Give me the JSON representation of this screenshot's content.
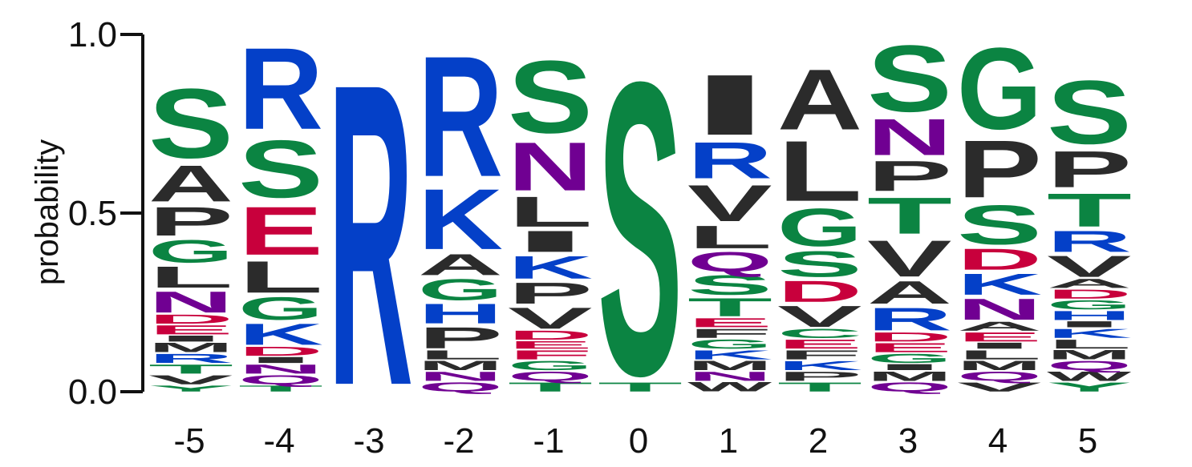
{
  "chart_data": {
    "type": "sequence-logo",
    "title": "",
    "xlabel": "",
    "ylabel": "probability",
    "ylim": [
      0,
      1
    ],
    "yticks": [
      "0.0",
      "0.5",
      "1.0"
    ],
    "positions": [
      "-5",
      "-4",
      "-3",
      "-2",
      "-1",
      "0",
      "1",
      "2",
      "3",
      "4",
      "5"
    ],
    "colors": {
      "green": "#0b8442",
      "blue": "#0440c8",
      "black": "#2b2b2b",
      "red": "#c8003c",
      "purple": "#700092"
    },
    "stacks": [
      {
        "position": "-5",
        "letters": [
          {
            "l": "Y",
            "h": 0.02,
            "c": "green"
          },
          {
            "l": "V",
            "h": 0.03,
            "c": "black"
          },
          {
            "l": "T",
            "h": 0.03,
            "c": "green"
          },
          {
            "l": "R",
            "h": 0.03,
            "c": "blue"
          },
          {
            "l": "M",
            "h": 0.03,
            "c": "black"
          },
          {
            "l": "I",
            "h": 0.02,
            "c": "black"
          },
          {
            "l": "E",
            "h": 0.03,
            "c": "red"
          },
          {
            "l": "D",
            "h": 0.03,
            "c": "red"
          },
          {
            "l": "N",
            "h": 0.07,
            "c": "purple"
          },
          {
            "l": "L",
            "h": 0.07,
            "c": "black"
          },
          {
            "l": "G",
            "h": 0.075,
            "c": "green"
          },
          {
            "l": "P",
            "h": 0.095,
            "c": "black"
          },
          {
            "l": "A",
            "h": 0.12,
            "c": "black"
          },
          {
            "l": "S",
            "h": 0.23,
            "c": "green"
          }
        ]
      },
      {
        "position": "-4",
        "letters": [
          {
            "l": "T",
            "h": 0.02,
            "c": "green"
          },
          {
            "l": "Q",
            "h": 0.03,
            "c": "purple"
          },
          {
            "l": "N",
            "h": 0.03,
            "c": "purple"
          },
          {
            "l": "I",
            "h": 0.02,
            "c": "black"
          },
          {
            "l": "D",
            "h": 0.03,
            "c": "red"
          },
          {
            "l": "K",
            "h": 0.07,
            "c": "blue"
          },
          {
            "l": "G",
            "h": 0.075,
            "c": "green"
          },
          {
            "l": "L",
            "h": 0.105,
            "c": "black"
          },
          {
            "l": "E",
            "h": 0.16,
            "c": "red"
          },
          {
            "l": "S",
            "h": 0.19,
            "c": "green"
          },
          {
            "l": "R",
            "h": 0.27,
            "c": "blue"
          }
        ]
      },
      {
        "position": "-3",
        "letters": [
          {
            "l": "R",
            "h": 1.0,
            "c": "blue"
          }
        ]
      },
      {
        "position": "-2",
        "letters": [
          {
            "l": "Q",
            "h": 0.03,
            "c": "purple"
          },
          {
            "l": "N",
            "h": 0.03,
            "c": "purple"
          },
          {
            "l": "M",
            "h": 0.03,
            "c": "black"
          },
          {
            "l": "L",
            "h": 0.03,
            "c": "black"
          },
          {
            "l": "P",
            "h": 0.07,
            "c": "black"
          },
          {
            "l": "H",
            "h": 0.065,
            "c": "blue"
          },
          {
            "l": "G",
            "h": 0.07,
            "c": "green"
          },
          {
            "l": "A",
            "h": 0.07,
            "c": "black"
          },
          {
            "l": "K",
            "h": 0.2,
            "c": "blue"
          },
          {
            "l": "R",
            "h": 0.4,
            "c": "blue"
          }
        ]
      },
      {
        "position": "-1",
        "letters": [
          {
            "l": "T",
            "h": 0.03,
            "c": "green"
          },
          {
            "l": "Q",
            "h": 0.03,
            "c": "purple"
          },
          {
            "l": "G",
            "h": 0.03,
            "c": "green"
          },
          {
            "l": "F",
            "h": 0.03,
            "c": "red"
          },
          {
            "l": "E",
            "h": 0.025,
            "c": "red"
          },
          {
            "l": "D",
            "h": 0.03,
            "c": "red"
          },
          {
            "l": "V",
            "h": 0.07,
            "c": "black"
          },
          {
            "l": "P",
            "h": 0.07,
            "c": "black"
          },
          {
            "l": "K",
            "h": 0.075,
            "c": "blue"
          },
          {
            "l": "I",
            "h": 0.07,
            "c": "black"
          },
          {
            "l": "L",
            "h": 0.1,
            "c": "black"
          },
          {
            "l": "N",
            "h": 0.16,
            "c": "purple"
          },
          {
            "l": "S",
            "h": 0.24,
            "c": "green"
          }
        ]
      },
      {
        "position": "0",
        "letters": [
          {
            "l": "T",
            "h": 0.03,
            "c": "green"
          },
          {
            "l": "S",
            "h": 0.97,
            "c": "green"
          }
        ]
      },
      {
        "position": "1",
        "letters": [
          {
            "l": "W",
            "h": 0.03,
            "c": "black"
          },
          {
            "l": "N",
            "h": 0.03,
            "c": "purple"
          },
          {
            "l": "M",
            "h": 0.03,
            "c": "black"
          },
          {
            "l": "K",
            "h": 0.03,
            "c": "blue"
          },
          {
            "l": "G",
            "h": 0.03,
            "c": "green"
          },
          {
            "l": "F",
            "h": 0.03,
            "c": "black"
          },
          {
            "l": "E",
            "h": 0.03,
            "c": "red"
          },
          {
            "l": "T",
            "h": 0.06,
            "c": "green"
          },
          {
            "l": "S",
            "h": 0.065,
            "c": "green"
          },
          {
            "l": "Q",
            "h": 0.065,
            "c": "purple"
          },
          {
            "l": "L",
            "h": 0.075,
            "c": "black"
          },
          {
            "l": "V",
            "h": 0.12,
            "c": "black"
          },
          {
            "l": "R",
            "h": 0.12,
            "c": "blue"
          },
          {
            "l": "I",
            "h": 0.2,
            "c": "black"
          }
        ]
      },
      {
        "position": "2",
        "letters": [
          {
            "l": "T",
            "h": 0.03,
            "c": "green"
          },
          {
            "l": "P",
            "h": 0.03,
            "c": "black"
          },
          {
            "l": "K",
            "h": 0.03,
            "c": "blue"
          },
          {
            "l": "F",
            "h": 0.03,
            "c": "black"
          },
          {
            "l": "E",
            "h": 0.03,
            "c": "red"
          },
          {
            "l": "C",
            "h": 0.03,
            "c": "green"
          },
          {
            "l": "V",
            "h": 0.07,
            "c": "black"
          },
          {
            "l": "D",
            "h": 0.07,
            "c": "red"
          },
          {
            "l": "S",
            "h": 0.085,
            "c": "green"
          },
          {
            "l": "G",
            "h": 0.125,
            "c": "green"
          },
          {
            "l": "L",
            "h": 0.2,
            "c": "black"
          },
          {
            "l": "A",
            "h": 0.2,
            "c": "black"
          }
        ]
      },
      {
        "position": "3",
        "letters": [
          {
            "l": "Q",
            "h": 0.03,
            "c": "purple"
          },
          {
            "l": "M",
            "h": 0.03,
            "c": "black"
          },
          {
            "l": "I",
            "h": 0.02,
            "c": "black"
          },
          {
            "l": "G",
            "h": 0.03,
            "c": "green"
          },
          {
            "l": "E",
            "h": 0.03,
            "c": "red"
          },
          {
            "l": "D",
            "h": 0.03,
            "c": "red"
          },
          {
            "l": "R",
            "h": 0.075,
            "c": "blue"
          },
          {
            "l": "A",
            "h": 0.075,
            "c": "black"
          },
          {
            "l": "V",
            "h": 0.12,
            "c": "black"
          },
          {
            "l": "T",
            "h": 0.12,
            "c": "green"
          },
          {
            "l": "P",
            "h": 0.1,
            "c": "black"
          },
          {
            "l": "N",
            "h": 0.12,
            "c": "purple"
          },
          {
            "l": "S",
            "h": 0.22,
            "c": "green"
          }
        ]
      },
      {
        "position": "4",
        "letters": [
          {
            "l": "V",
            "h": 0.03,
            "c": "black"
          },
          {
            "l": "Q",
            "h": 0.03,
            "c": "purple"
          },
          {
            "l": "M",
            "h": 0.03,
            "c": "black"
          },
          {
            "l": "L",
            "h": 0.03,
            "c": "black"
          },
          {
            "l": "I",
            "h": 0.02,
            "c": "black"
          },
          {
            "l": "E",
            "h": 0.03,
            "c": "red"
          },
          {
            "l": "A",
            "h": 0.03,
            "c": "black"
          },
          {
            "l": "N",
            "h": 0.07,
            "c": "purple"
          },
          {
            "l": "K",
            "h": 0.07,
            "c": "blue"
          },
          {
            "l": "D",
            "h": 0.07,
            "c": "red"
          },
          {
            "l": "S",
            "h": 0.13,
            "c": "green"
          },
          {
            "l": "P",
            "h": 0.19,
            "c": "black"
          },
          {
            "l": "G",
            "h": 0.27,
            "c": "green"
          }
        ]
      },
      {
        "position": "5",
        "letters": [
          {
            "l": "Y",
            "h": 0.03,
            "c": "green"
          },
          {
            "l": "W",
            "h": 0.03,
            "c": "black"
          },
          {
            "l": "Q",
            "h": 0.03,
            "c": "purple"
          },
          {
            "l": "M",
            "h": 0.03,
            "c": "black"
          },
          {
            "l": "L",
            "h": 0.03,
            "c": "black"
          },
          {
            "l": "K",
            "h": 0.03,
            "c": "blue"
          },
          {
            "l": "I",
            "h": 0.02,
            "c": "black"
          },
          {
            "l": "H",
            "h": 0.03,
            "c": "blue"
          },
          {
            "l": "G",
            "h": 0.03,
            "c": "green"
          },
          {
            "l": "D",
            "h": 0.03,
            "c": "red"
          },
          {
            "l": "A",
            "h": 0.03,
            "c": "black"
          },
          {
            "l": "V",
            "h": 0.07,
            "c": "black"
          },
          {
            "l": "R",
            "h": 0.07,
            "c": "blue"
          },
          {
            "l": "T",
            "h": 0.11,
            "c": "green"
          },
          {
            "l": "P",
            "h": 0.12,
            "c": "black"
          },
          {
            "l": "S",
            "h": 0.21,
            "c": "green"
          }
        ]
      }
    ]
  }
}
